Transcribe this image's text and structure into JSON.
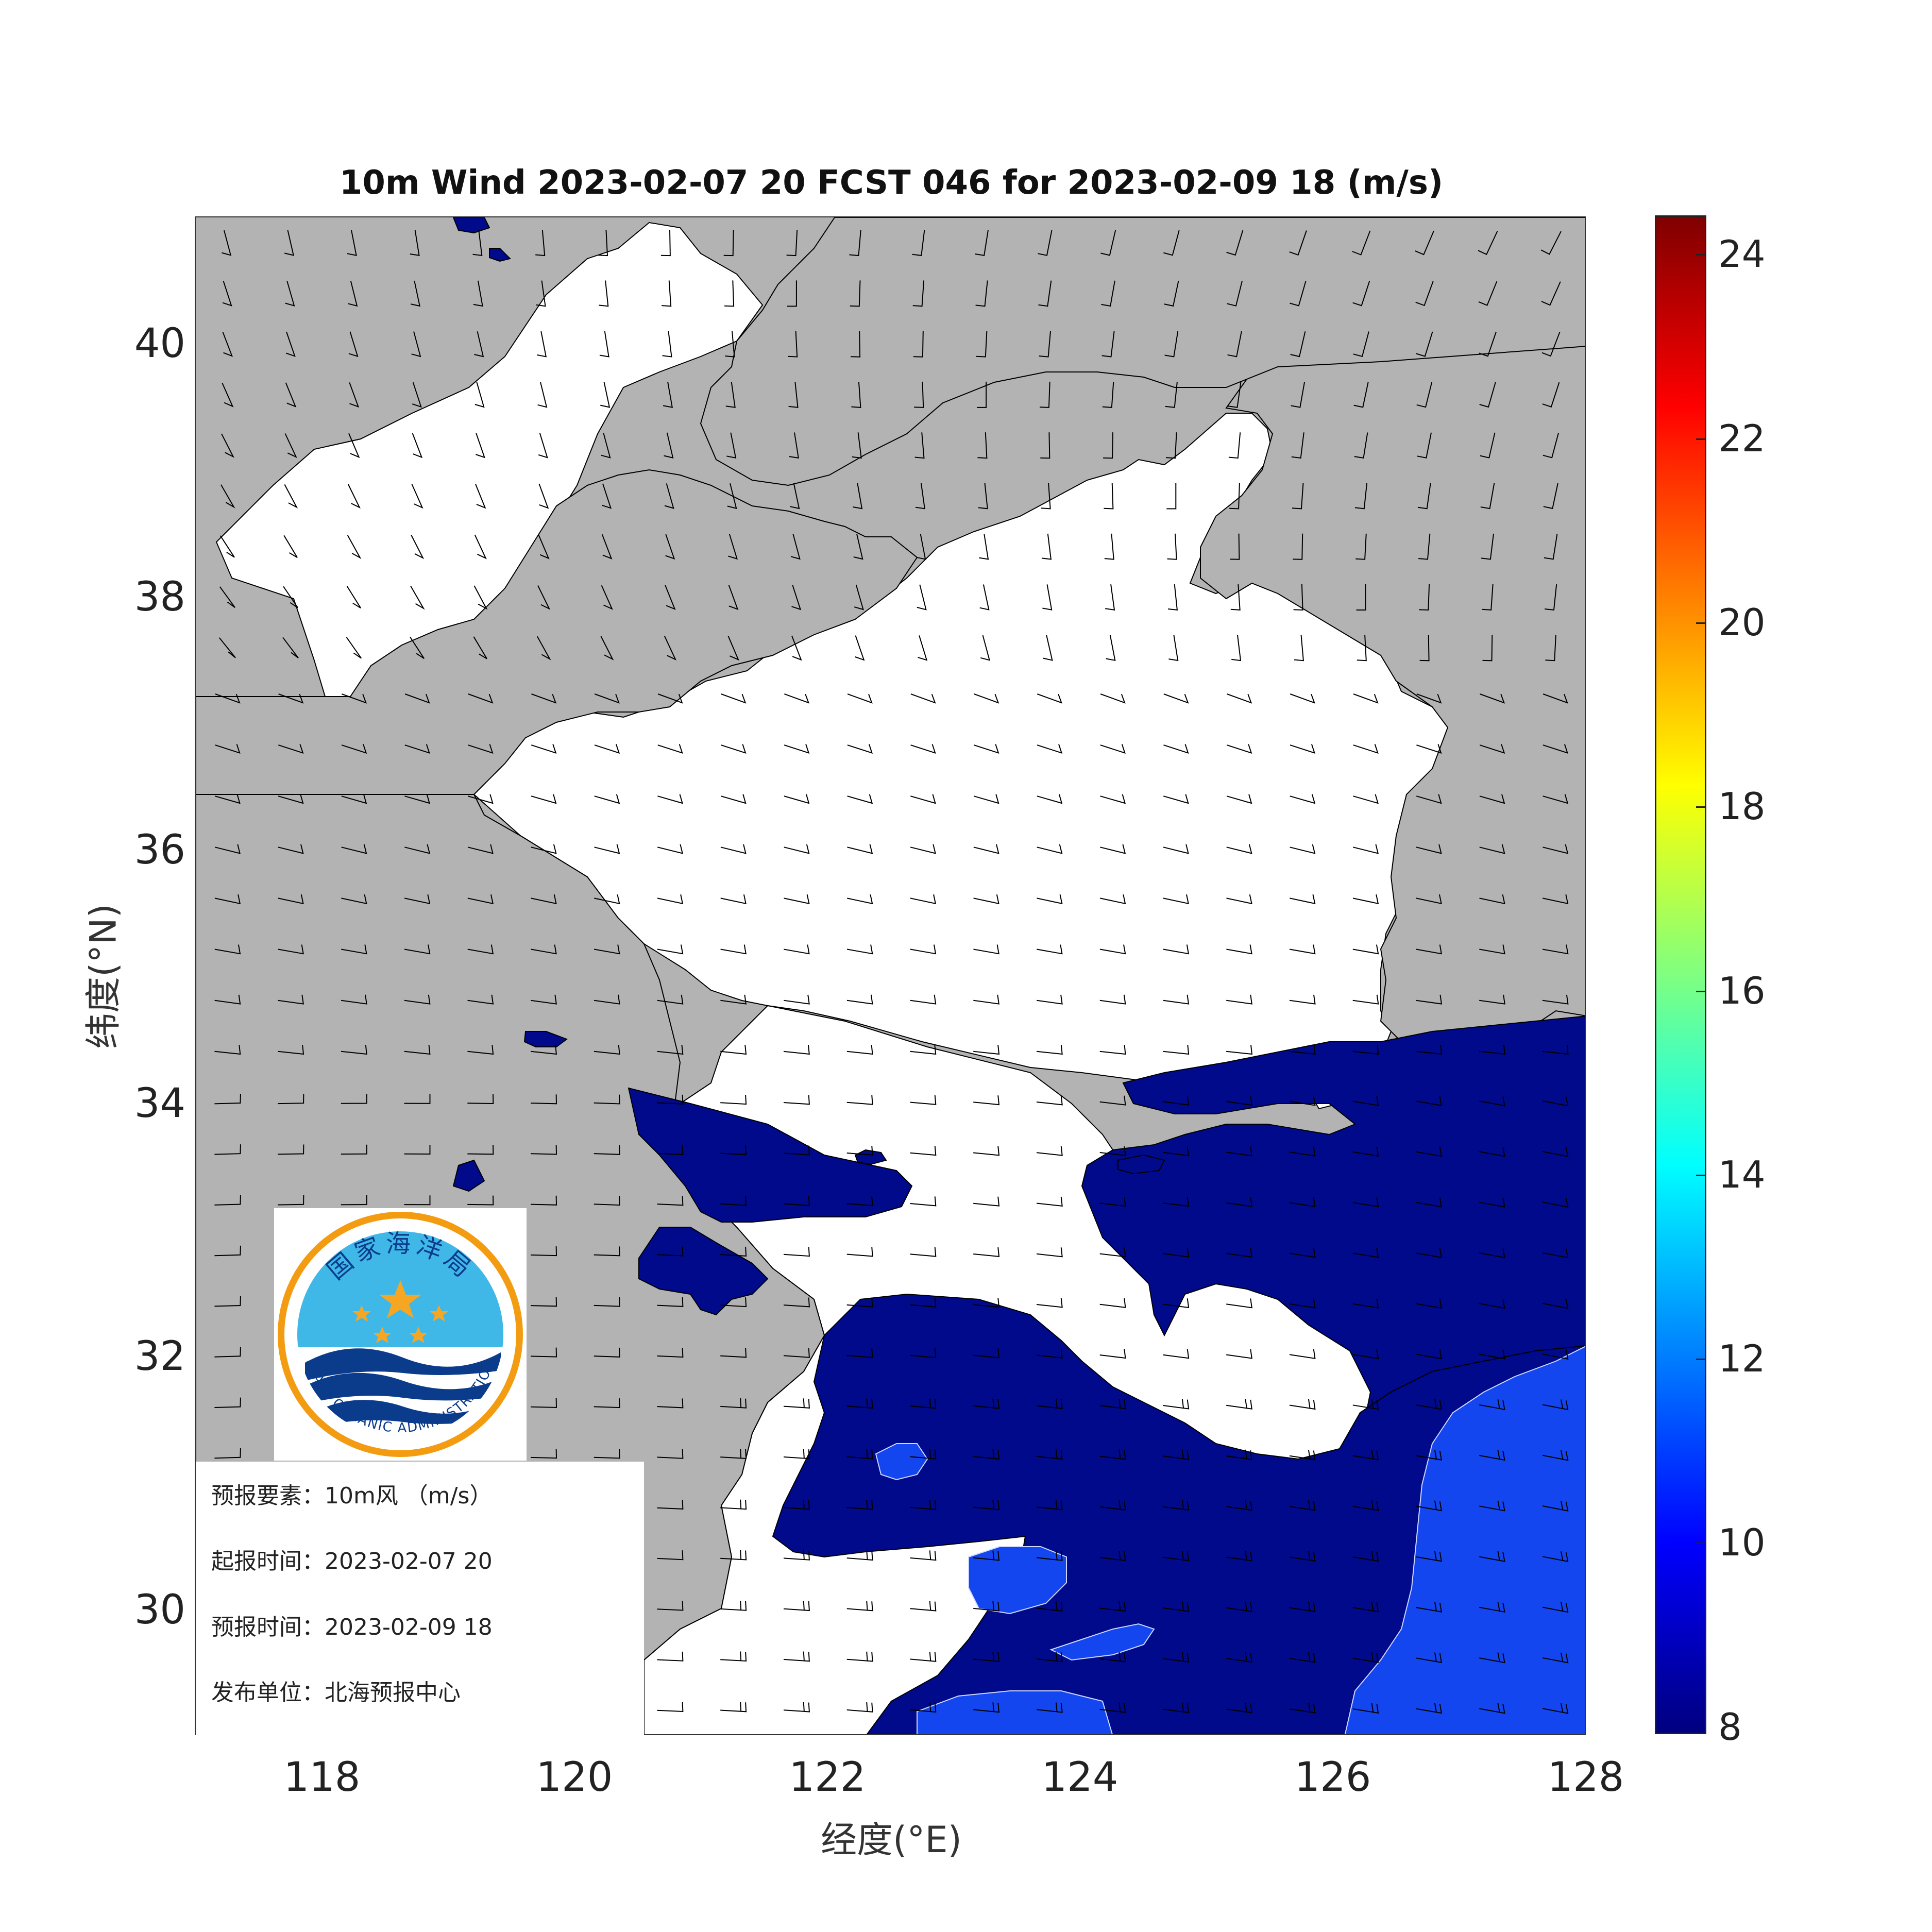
{
  "title": "10m Wind 2023-02-07 20 FCST 046 for 2023-02-09 18 (m/s)",
  "axes": {
    "xlabel": "经度(°E)",
    "ylabel": "纬度(°N)",
    "xticks": [
      "118",
      "120",
      "122",
      "124",
      "126",
      "128"
    ],
    "yticks": [
      "40",
      "38",
      "36",
      "34",
      "32",
      "30"
    ]
  },
  "colorbar": {
    "ticks": [
      "24",
      "22",
      "20",
      "18",
      "16",
      "14",
      "12",
      "10",
      "8"
    ],
    "range": [
      8,
      24.5
    ],
    "colormap": "jet"
  },
  "map": {
    "land_color": "#b3b3b3",
    "sea_below_8_color": "#ffffff",
    "band_8_10_color": "#000a8a",
    "band_10_12_color": "#1446f0",
    "lon_range": [
      117,
      128
    ],
    "lat_range": [
      29,
      41
    ]
  },
  "info": {
    "element_label": "预报要素：",
    "element_value": "10m风 （m/s）",
    "issue_label": "起报时间：",
    "issue_value": "2023-02-07 20",
    "valid_label": "预报时间：",
    "valid_value": "2023-02-09 18",
    "publisher_label": "发布单位：",
    "publisher_value": "北海预报中心"
  },
  "logo": {
    "top_text": "国家海洋局",
    "bottom_text": "STATE OCEANIC ADMINISTRATION",
    "ring_color": "#f39c12",
    "sky_color": "#3fb8e8",
    "wave_color": "#0b3c8c",
    "star_color": "#f5a623"
  }
}
